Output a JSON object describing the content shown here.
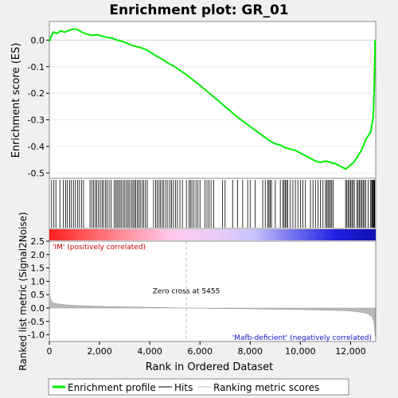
{
  "chart_data": {
    "title": "Enrichment plot: GR_01",
    "type": "line",
    "x_label": "Rank in Ordered Dataset",
    "es_panel": {
      "ylabel": "Enrichment score (ES)",
      "ylim": [
        -0.52,
        0.07
      ],
      "yticks": [
        0.0,
        -0.1,
        -0.2,
        -0.3,
        -0.4,
        -0.5
      ],
      "ytick_labels": [
        "0.0",
        "-0.1",
        "-0.2",
        "-0.3",
        "-0.4",
        "-0.5"
      ],
      "line_color": "#00ee00",
      "series": [
        {
          "name": "Enrichment profile",
          "x": [
            0,
            80,
            160,
            300,
            450,
            600,
            750,
            900,
            1000,
            1150,
            1300,
            1500,
            1700,
            1900,
            2100,
            2300,
            2500,
            2700,
            2900,
            3100,
            3300,
            3500,
            3700,
            3900,
            4100,
            4300,
            4500,
            4700,
            5000,
            5455,
            6000,
            6500,
            7000,
            7500,
            8000,
            8500,
            8800,
            9000,
            9200,
            9400,
            9600,
            9800,
            10000,
            10200,
            10400,
            10600,
            10800,
            11000,
            11200,
            11400,
            11600,
            11800,
            11900,
            12000,
            12100,
            12200,
            12300,
            12400,
            12500,
            12600,
            12700,
            12800,
            12850,
            12900,
            12920,
            12940,
            12960,
            12975
          ],
          "y": [
            -0.005,
            0.015,
            0.03,
            0.025,
            0.035,
            0.03,
            0.035,
            0.04,
            0.042,
            0.038,
            0.03,
            0.022,
            0.018,
            0.02,
            0.015,
            0.01,
            0.008,
            0.0,
            -0.005,
            -0.012,
            -0.02,
            -0.025,
            -0.03,
            -0.038,
            -0.05,
            -0.062,
            -0.072,
            -0.085,
            -0.1,
            -0.13,
            -0.17,
            -0.21,
            -0.25,
            -0.29,
            -0.325,
            -0.36,
            -0.38,
            -0.39,
            -0.395,
            -0.405,
            -0.41,
            -0.415,
            -0.425,
            -0.435,
            -0.445,
            -0.455,
            -0.46,
            -0.455,
            -0.46,
            -0.465,
            -0.475,
            -0.485,
            -0.478,
            -0.47,
            -0.462,
            -0.45,
            -0.435,
            -0.42,
            -0.4,
            -0.375,
            -0.36,
            -0.345,
            -0.32,
            -0.29,
            -0.24,
            -0.18,
            -0.09,
            0.0
          ]
        }
      ]
    },
    "hits_panel": {
      "positions": [
        90,
        180,
        260,
        420,
        560,
        650,
        720,
        810,
        880,
        960,
        1040,
        1130,
        1200,
        1280,
        1360,
        1620,
        1690,
        1760,
        1830,
        1890,
        1960,
        2030,
        2100,
        2160,
        2240,
        2300,
        2380,
        2460,
        2580,
        2650,
        2700,
        2760,
        2820,
        2880,
        2950,
        3010,
        3080,
        3140,
        3200,
        3270,
        3330,
        3390,
        3440,
        3500,
        3560,
        3620,
        3690,
        3760,
        3830,
        3900,
        4150,
        4230,
        4300,
        4370,
        4430,
        4500,
        4560,
        4640,
        4720,
        4800,
        4870,
        4940,
        5020,
        5100,
        5200,
        5300,
        5460,
        5560,
        5620,
        5680,
        5760,
        5840,
        5920,
        6000,
        6200,
        6280,
        6360,
        6440,
        6550,
        6900,
        7000,
        7300,
        7500,
        7700,
        7900,
        8000,
        8200,
        8500,
        8600,
        8700,
        8750,
        8800,
        8850,
        9000,
        9200,
        9300,
        9350,
        9400,
        9450,
        9500,
        9600,
        9700,
        9800,
        9900,
        10000,
        10100,
        10200,
        10400,
        10500,
        10600,
        10700,
        10800,
        10900,
        11000,
        11050,
        11100,
        11150,
        11200,
        11250,
        11300,
        11800,
        11850,
        11900,
        11950,
        12000,
        12050,
        12100,
        12150,
        12250,
        12300,
        12350,
        12400,
        12450,
        12500,
        12550,
        12600,
        12700,
        12800,
        12840,
        12870,
        12900,
        12920,
        12940,
        12960
      ]
    },
    "colorbar": {
      "stops": [
        "#ff2020",
        "#ff6060",
        "#ff9aa8",
        "#ffc8ec",
        "#ecccf8",
        "#c8c4fa",
        "#7070f0",
        "#2020e0",
        "#1010b0"
      ]
    },
    "metric_panel": {
      "ylabel": "Ranked list metric (Signal2Noise)",
      "ylim": [
        -1.25,
        2.5
      ],
      "yticks": [
        2.5,
        2.0,
        1.5,
        1.0,
        0.5,
        0.0,
        -0.5,
        -1.0
      ],
      "ytick_labels": [
        "2.5",
        "2.0",
        "1.5",
        "1.0",
        "0.5",
        "0.0",
        "-0.5",
        "-1.0"
      ],
      "profile_x": [
        0,
        20,
        60,
        120,
        200,
        400,
        700,
        1000,
        1500,
        2000,
        3000,
        4000,
        5000,
        5455,
        6000,
        7000,
        8000,
        9000,
        10000,
        11000,
        11800,
        12200,
        12500,
        12700,
        12850,
        12920,
        12960,
        12975
      ],
      "profile_y": [
        0.62,
        0.45,
        0.3,
        0.22,
        0.18,
        0.15,
        0.12,
        0.1,
        0.08,
        0.065,
        0.045,
        0.03,
        0.012,
        0.0,
        -0.01,
        -0.02,
        -0.03,
        -0.045,
        -0.06,
        -0.08,
        -0.1,
        -0.13,
        -0.17,
        -0.22,
        -0.32,
        -0.5,
        -0.8,
        -1.05
      ],
      "zero_cross_label": "Zero cross at 5455",
      "zero_cross_rank": 5455,
      "pos_label": "'IM' (positively correlated)",
      "neg_label": "'Mafb-deficient' (negatively correlated)"
    },
    "xlim": [
      0,
      13000
    ],
    "xticks": [
      0,
      2000,
      4000,
      6000,
      8000,
      10000,
      12000
    ],
    "xtick_labels": [
      "0",
      "2,000",
      "4,000",
      "6,000",
      "8,000",
      "10,000",
      "12,000"
    ],
    "legend": [
      "Enrichment profile",
      "Hits",
      "Ranking metric scores"
    ]
  }
}
